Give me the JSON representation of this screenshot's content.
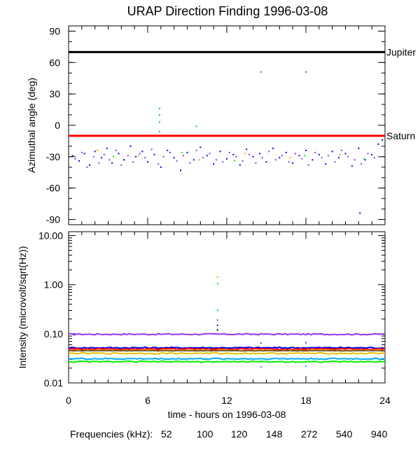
{
  "title": "URAP Direction Finding  1996-03-08",
  "legend": {
    "label": "Frequencies (kHz):",
    "items": [
      {
        "label": "52",
        "color": "#ff0000"
      },
      {
        "label": "100",
        "color": "#ff9900"
      },
      {
        "label": "120",
        "color": "#e0c000"
      },
      {
        "label": "148",
        "color": "#00ee00"
      },
      {
        "label": "272",
        "color": "#00aaee"
      },
      {
        "label": "540",
        "color": "#0000ee"
      },
      {
        "label": "940",
        "color": "#9933ee"
      }
    ]
  },
  "chart_data": [
    {
      "type": "scatter",
      "ylabel": "Azimuthal angle (deg)",
      "xlim": [
        0,
        24
      ],
      "ylim": [
        -95,
        95
      ],
      "yticks": [
        "90",
        "60",
        "30",
        "0",
        "-30",
        "-60",
        "-90"
      ],
      "yticks_values": [
        90,
        60,
        30,
        0,
        -30,
        -60,
        -90
      ],
      "reference_lines": [
        {
          "label": "Jupiter",
          "y": 70,
          "color": "#000000"
        },
        {
          "label": "Saturn",
          "y": -10,
          "color": "#ff0000"
        }
      ],
      "series": [
        {
          "color": "#0000ee",
          "points": [
            [
              0.3,
              -29
            ],
            [
              0.8,
              -34
            ],
            [
              1.2,
              -27
            ],
            [
              1.6,
              -38
            ],
            [
              2.0,
              -25
            ],
            [
              2.5,
              -31
            ],
            [
              2.9,
              -22
            ],
            [
              3.3,
              -36
            ],
            [
              3.8,
              -27
            ],
            [
              4.2,
              -33
            ],
            [
              4.7,
              -20
            ],
            [
              5.1,
              -30
            ],
            [
              5.6,
              -25
            ],
            [
              6.0,
              -35
            ],
            [
              6.5,
              -28
            ],
            [
              7.0,
              -40
            ],
            [
              7.5,
              -24
            ],
            [
              8.0,
              -31
            ],
            [
              8.5,
              -43
            ],
            [
              9.0,
              -26
            ],
            [
              9.5,
              -33
            ],
            [
              10.0,
              -21
            ],
            [
              10.5,
              -29
            ],
            [
              11.0,
              -37
            ],
            [
              11.5,
              -25
            ],
            [
              12.0,
              -32
            ],
            [
              12.5,
              -28
            ],
            [
              13.0,
              -38
            ],
            [
              13.5,
              -23
            ],
            [
              14.0,
              -30
            ],
            [
              14.5,
              -27
            ],
            [
              15.0,
              -35
            ],
            [
              15.5,
              -22
            ],
            [
              16.0,
              -31
            ],
            [
              16.5,
              -26
            ],
            [
              17.0,
              -36
            ],
            [
              17.5,
              -29
            ],
            [
              18.0,
              -24
            ],
            [
              18.5,
              -33
            ],
            [
              19.0,
              -28
            ],
            [
              19.5,
              -37
            ],
            [
              20.0,
              -25
            ],
            [
              20.5,
              -31
            ],
            [
              21.0,
              -27
            ],
            [
              21.5,
              -39
            ],
            [
              22.0,
              -22
            ],
            [
              22.5,
              -33
            ],
            [
              23.0,
              -28
            ],
            [
              23.5,
              -18
            ],
            [
              23.8,
              -14
            ],
            [
              22.1,
              -84
            ]
          ]
        },
        {
          "color": "#9933ee",
          "points": [
            [
              0.5,
              -32
            ],
            [
              1.0,
              -26
            ],
            [
              1.4,
              -40
            ],
            [
              1.9,
              -30
            ],
            [
              2.3,
              -36
            ],
            [
              2.7,
              -28
            ],
            [
              3.1,
              -33
            ],
            [
              3.6,
              -24
            ],
            [
              4.0,
              -38
            ],
            [
              4.5,
              -29
            ],
            [
              4.9,
              -35
            ],
            [
              5.4,
              -27
            ],
            [
              5.8,
              -31
            ],
            [
              6.3,
              -23
            ],
            [
              6.8,
              -37
            ],
            [
              7.2,
              -30
            ],
            [
              7.7,
              -26
            ],
            [
              8.2,
              -34
            ],
            [
              8.7,
              -29
            ],
            [
              9.2,
              -36
            ],
            [
              9.7,
              -24
            ],
            [
              10.2,
              -31
            ],
            [
              10.7,
              -27
            ],
            [
              11.2,
              -33
            ],
            [
              11.7,
              -35
            ],
            [
              12.2,
              -26
            ],
            [
              12.7,
              -30
            ],
            [
              13.2,
              -34
            ],
            [
              13.7,
              -28
            ],
            [
              14.2,
              -36
            ],
            [
              14.7,
              -31
            ],
            [
              15.2,
              -25
            ],
            [
              15.7,
              -33
            ],
            [
              16.2,
              -29
            ],
            [
              16.7,
              -35
            ],
            [
              17.2,
              -27
            ],
            [
              17.7,
              -32
            ],
            [
              18.2,
              -38
            ],
            [
              18.7,
              -26
            ],
            [
              19.2,
              -31
            ],
            [
              19.7,
              -29
            ],
            [
              20.2,
              -35
            ],
            [
              20.7,
              -24
            ],
            [
              21.2,
              -30
            ],
            [
              21.7,
              -33
            ],
            [
              22.2,
              -37
            ],
            [
              22.7,
              -27
            ],
            [
              23.2,
              -31
            ],
            [
              14.6,
              51
            ],
            [
              18.0,
              51
            ]
          ]
        },
        {
          "color": "#00aaee",
          "points": [
            [
              6.9,
              16
            ],
            [
              6.9,
              10
            ],
            [
              6.9,
              3
            ],
            [
              6.9,
              -6
            ],
            [
              9.7,
              -1
            ]
          ]
        },
        {
          "color": "#ff9900",
          "points": [
            [
              2.2,
              -24
            ],
            [
              5.3,
              -29
            ],
            [
              9.9,
              -33
            ],
            [
              13.4,
              -27
            ],
            [
              16.8,
              -31
            ],
            [
              20.6,
              -28
            ]
          ]
        },
        {
          "color": "#00ee00",
          "points": [
            [
              3.4,
              -30
            ],
            [
              8.6,
              -26
            ],
            [
              12.6,
              -34
            ],
            [
              17.9,
              -29
            ],
            [
              22.4,
              -32
            ]
          ]
        }
      ]
    },
    {
      "type": "line",
      "xlabel": "time - hours on 1996-03-08",
      "ylabel": "Intensity (microvolt/sqrt(Hz))",
      "xlim": [
        0,
        24
      ],
      "ylim": [
        0.01,
        12.0
      ],
      "yscale": "log",
      "xticks": [
        "0",
        "6",
        "12",
        "18",
        "24"
      ],
      "xticks_values": [
        0,
        6,
        12,
        18,
        24
      ],
      "yticks": [
        "10.00",
        "1.00",
        "0.10",
        "0.01"
      ],
      "yticks_values": [
        10,
        1,
        0.1,
        0.01
      ],
      "series": [
        {
          "name": "940",
          "color": "#9933ee",
          "values": [
            0.098,
            0.098
          ]
        },
        {
          "name": "540",
          "color": "#0000ee",
          "values": [
            0.052,
            0.052
          ]
        },
        {
          "name": "52",
          "color": "#ff0000",
          "values": [
            0.049,
            0.049
          ]
        },
        {
          "name": "100",
          "color": "#ff9900",
          "values": [
            0.046,
            0.046
          ]
        },
        {
          "name": "120",
          "color": "#e0c000",
          "values": [
            0.04,
            0.04
          ]
        },
        {
          "name": "272",
          "color": "#00aaee",
          "values": [
            0.031,
            0.031
          ]
        },
        {
          "name": "148",
          "color": "#00ee00",
          "values": [
            0.027,
            0.027
          ]
        }
      ],
      "spikes": [
        {
          "x": 11.3,
          "y": 1.42,
          "color": "#ff9900"
        },
        {
          "x": 11.3,
          "y": 1.05,
          "color": "#00ee00"
        },
        {
          "x": 11.3,
          "y": 0.3,
          "color": "#00aaee"
        },
        {
          "x": 11.3,
          "y": 0.19,
          "color": "#9933ee"
        },
        {
          "x": 11.3,
          "y": 0.15,
          "color": "#0000ee"
        },
        {
          "x": 11.3,
          "y": 0.12,
          "color": "#000000"
        },
        {
          "x": 14.6,
          "y": 0.021,
          "color": "#00aaee"
        },
        {
          "x": 14.6,
          "y": 0.065,
          "color": "#9933ee"
        },
        {
          "x": 18.0,
          "y": 0.066,
          "color": "#9933ee"
        },
        {
          "x": 18.0,
          "y": 0.022,
          "color": "#00aaee"
        }
      ]
    }
  ]
}
